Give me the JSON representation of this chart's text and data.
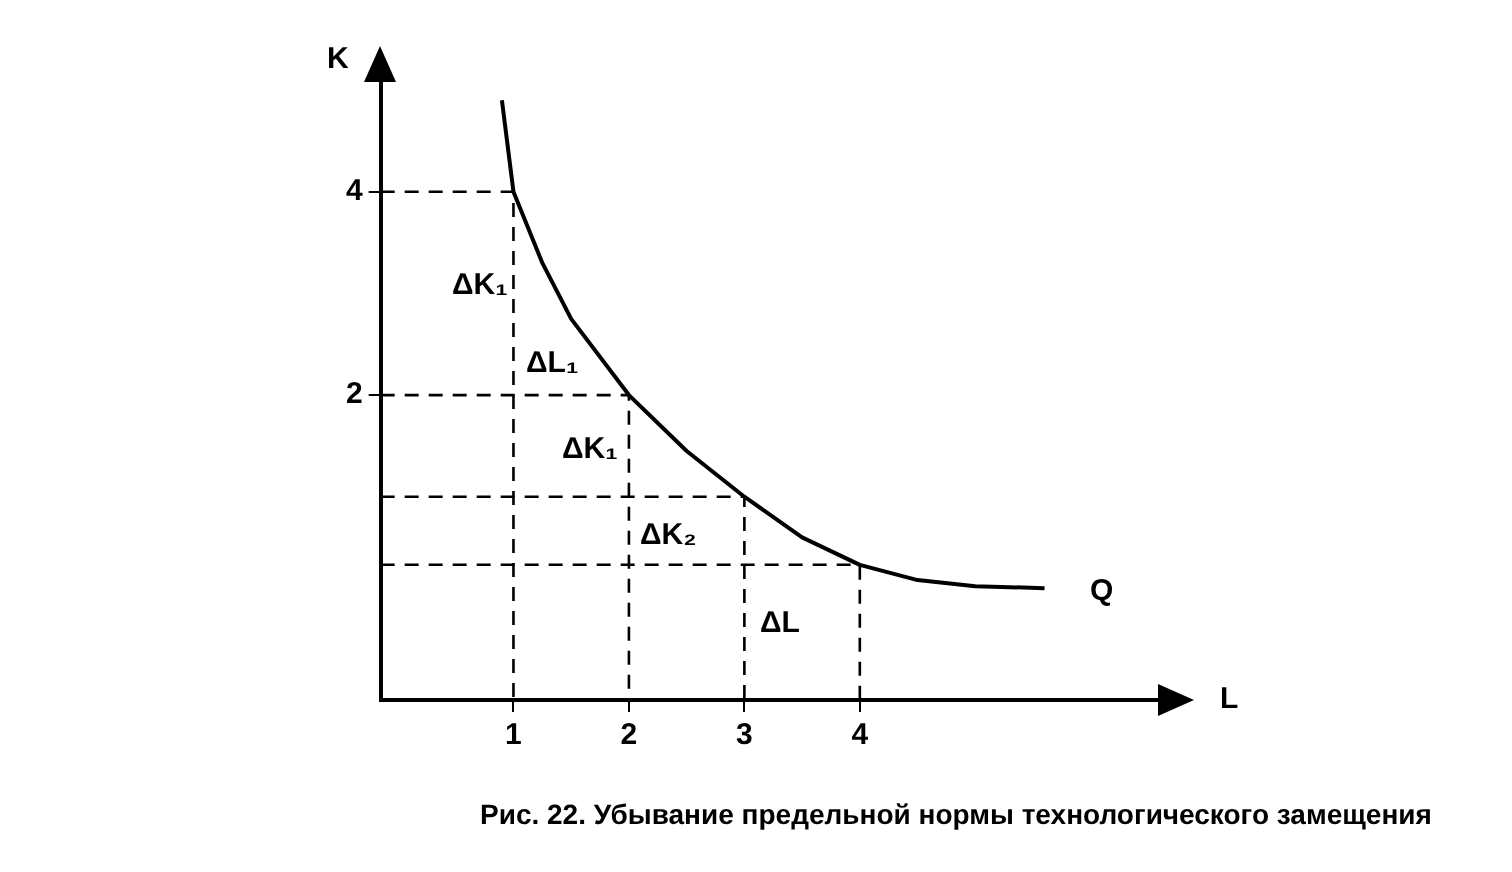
{
  "chart_data": {
    "type": "line",
    "xlabel": "L",
    "ylabel": "K",
    "xlim": [
      -0.15,
      6.6
    ],
    "ylim": [
      -1,
      5.1
    ],
    "xticks": [
      1,
      2,
      3,
      4
    ],
    "yticks": [
      2,
      4
    ],
    "grid": false,
    "legend": false,
    "marker": "none",
    "series": [
      {
        "x": [
          0.9,
          1,
          1.25,
          1.5,
          2,
          2.5,
          3,
          3.5,
          4,
          4.5,
          5,
          5.6
        ],
        "values": [
          4.9,
          4,
          3.3,
          2.75,
          2,
          1.45,
          1,
          0.6,
          0.33,
          0.18,
          0.12,
          0.1
        ],
        "color": "#000000",
        "line_style": "solid"
      },
      {
        "x": [
          -0.15,
          1,
          1
        ],
        "values": [
          4,
          4,
          -1
        ],
        "color": "#000000",
        "line_style": "dashed"
      },
      {
        "x": [
          -0.15,
          2,
          2
        ],
        "values": [
          2,
          2,
          -1
        ],
        "color": "#000000",
        "line_style": "dashed"
      },
      {
        "x": [
          -0.15,
          3,
          3
        ],
        "values": [
          1,
          1,
          -1
        ],
        "color": "#000000",
        "line_style": "dashed"
      },
      {
        "x": [
          -0.15,
          4,
          4
        ],
        "values": [
          0.33,
          0.33,
          -1
        ],
        "color": "#000000",
        "line_style": "dashed"
      }
    ],
    "annotations": [
      "ΔK₁",
      "ΔL₁",
      "ΔK₁",
      "ΔK₂",
      "ΔL",
      "Q",
      "Рис. 22. Убывание предельной нормы технологического замещения"
    ]
  }
}
